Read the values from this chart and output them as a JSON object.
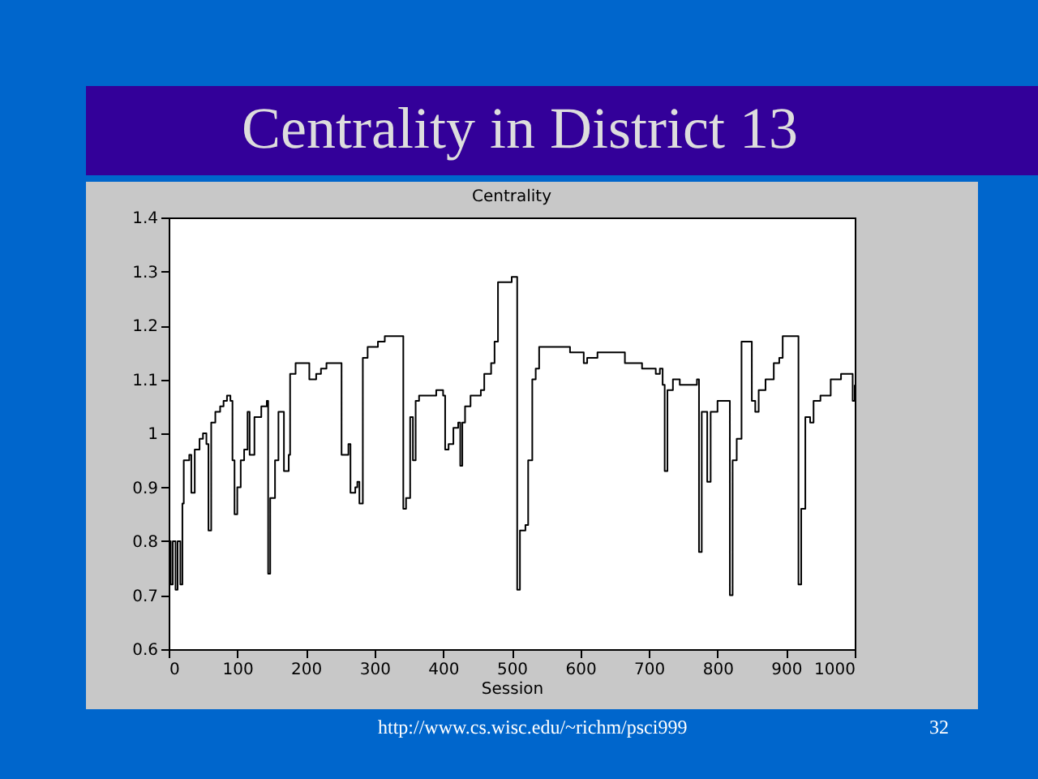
{
  "chart_data": {
    "type": "step",
    "title": "Centrality in District 13",
    "subtitle": "Centrality",
    "xlabel": "Session",
    "annotations": [
      "http://www.cs.wisc.edu/~richm/psci999",
      "32"
    ],
    "x": [
      0,
      3,
      6,
      10,
      13,
      17,
      20,
      22,
      30,
      33,
      38,
      45,
      50,
      55,
      58,
      62,
      68,
      75,
      80,
      85,
      90,
      93,
      96,
      100,
      105,
      110,
      115,
      118,
      125,
      135,
      143,
      145,
      148,
      155,
      160,
      168,
      175,
      177,
      185,
      200,
      205,
      215,
      222,
      230,
      245,
      252,
      262,
      265,
      272,
      275,
      278,
      283,
      290,
      305,
      315,
      330,
      338,
      342,
      346,
      352,
      356,
      360,
      365,
      390,
      400,
      403,
      408,
      415,
      422,
      425,
      428,
      432,
      440,
      455,
      460,
      470,
      475,
      480,
      500,
      505,
      508,
      512,
      520,
      524,
      530,
      535,
      540,
      560,
      580,
      585,
      595,
      605,
      610,
      625,
      640,
      660,
      665,
      690,
      705,
      710,
      716,
      720,
      723,
      727,
      735,
      745,
      760,
      770,
      773,
      777,
      785,
      790,
      800,
      810,
      815,
      818,
      822,
      828,
      835,
      845,
      850,
      855,
      860,
      870,
      882,
      890,
      895,
      915,
      918,
      922,
      928,
      935,
      940,
      950,
      958,
      965,
      975,
      980,
      995,
      997,
      1000
    ],
    "series": [
      {
        "color": "#000000",
        "values": [
          0.8,
          0.72,
          0.8,
          0.71,
          0.8,
          0.72,
          0.87,
          0.95,
          0.96,
          0.89,
          0.97,
          0.99,
          1.0,
          0.98,
          0.82,
          1.02,
          1.04,
          1.05,
          1.06,
          1.07,
          1.06,
          0.95,
          0.85,
          0.9,
          0.95,
          0.97,
          1.04,
          0.96,
          1.03,
          1.05,
          1.06,
          0.74,
          0.88,
          0.95,
          1.04,
          0.93,
          0.96,
          1.11,
          1.13,
          1.13,
          1.1,
          1.11,
          1.12,
          1.13,
          1.13,
          0.96,
          0.98,
          0.89,
          0.9,
          0.91,
          0.87,
          1.14,
          1.16,
          1.17,
          1.18,
          1.18,
          1.18,
          0.86,
          0.88,
          1.03,
          0.95,
          1.06,
          1.07,
          1.08,
          1.07,
          0.97,
          0.98,
          1.01,
          1.02,
          0.94,
          1.02,
          1.05,
          1.07,
          1.08,
          1.11,
          1.13,
          1.17,
          1.28,
          1.29,
          1.29,
          0.71,
          0.82,
          0.83,
          0.95,
          1.1,
          1.12,
          1.16,
          1.16,
          1.16,
          1.15,
          1.15,
          1.13,
          1.14,
          1.15,
          1.15,
          1.15,
          1.13,
          1.12,
          1.12,
          1.11,
          1.12,
          1.09,
          0.93,
          1.08,
          1.1,
          1.09,
          1.09,
          1.1,
          0.78,
          1.04,
          0.91,
          1.04,
          1.06,
          1.06,
          1.06,
          0.7,
          0.95,
          0.99,
          1.17,
          1.17,
          1.06,
          1.04,
          1.08,
          1.1,
          1.13,
          1.14,
          1.18,
          1.18,
          0.72,
          0.86,
          1.03,
          1.02,
          1.06,
          1.07,
          1.07,
          1.1,
          1.1,
          1.11,
          1.11,
          1.06,
          1.09
        ]
      }
    ],
    "xlim": [
      0,
      1000
    ],
    "xticks": [
      0,
      100,
      200,
      300,
      400,
      500,
      600,
      700,
      800,
      900,
      1000
    ],
    "ylim": [
      0.6,
      1.4
    ],
    "yticks": [
      0.6,
      0.7,
      0.8,
      0.9,
      1,
      1.1,
      1.2,
      1.3,
      1.4
    ],
    "grid": false,
    "marker": "none",
    "line_style": "solid"
  }
}
